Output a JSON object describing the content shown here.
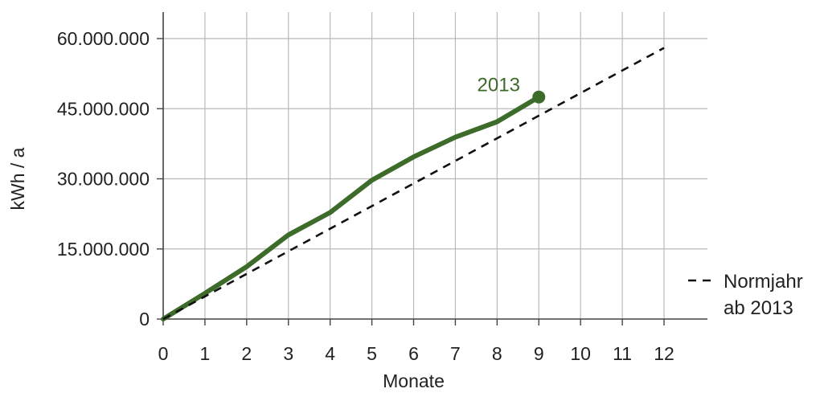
{
  "chart_data": {
    "type": "line",
    "xlabel": "Monate",
    "ylabel": "kWh / a",
    "xlim": [
      0,
      12
    ],
    "ylim": [
      0,
      60000000
    ],
    "x_ticks": [
      0,
      1,
      2,
      3,
      4,
      5,
      6,
      7,
      8,
      9,
      10,
      11,
      12
    ],
    "x_tick_labels": [
      "0",
      "1",
      "2",
      "3",
      "4",
      "5",
      "6",
      "7",
      "8",
      "9",
      "10",
      "11",
      "12"
    ],
    "y_ticks": [
      0,
      15000000,
      30000000,
      45000000,
      60000000
    ],
    "y_tick_labels": [
      "0",
      "15.000.000",
      "30.000.000",
      "45.000.000",
      "60.000.000"
    ],
    "grid": true,
    "legend_position": "bottom-right",
    "series": [
      {
        "name": "2013",
        "style": "solid",
        "color": "#3d6b2a",
        "x": [
          0,
          1,
          2,
          3,
          4,
          5,
          6,
          7,
          8,
          9
        ],
        "y": [
          0,
          5500000,
          11200000,
          18000000,
          22800000,
          29700000,
          34700000,
          38900000,
          42200000,
          47500000
        ],
        "label": "2013",
        "end_marker": true
      },
      {
        "name": "Normjahr ab 2013",
        "style": "dashed",
        "color": "#111111",
        "x": [
          0,
          12
        ],
        "y": [
          0,
          58000000
        ],
        "legend_lines": [
          "Normjahr",
          "ab 2013"
        ]
      }
    ]
  }
}
